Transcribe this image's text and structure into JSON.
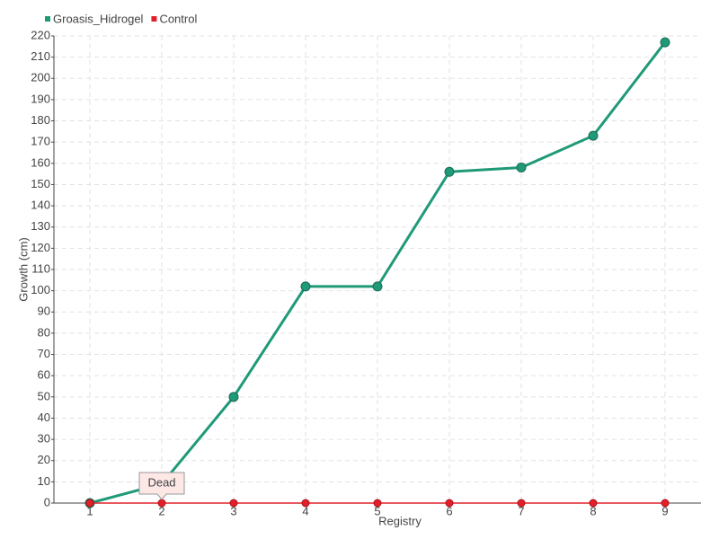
{
  "chart_data": {
    "type": "line",
    "categories": [
      "1",
      "2",
      "3",
      "4",
      "5",
      "6",
      "7",
      "8",
      "9"
    ],
    "series": [
      {
        "name": "Groasis_Hidrogel",
        "color": "#1f9a78",
        "values": [
          0,
          9,
          50,
          102,
          102,
          156,
          158,
          173,
          217
        ]
      },
      {
        "name": "Control",
        "color": "#e0202a",
        "values": [
          0,
          0,
          0,
          0,
          0,
          0,
          0,
          0,
          0
        ]
      }
    ],
    "ylim": [
      0,
      220
    ],
    "yticks": [
      0,
      10,
      20,
      30,
      40,
      50,
      60,
      70,
      80,
      90,
      100,
      110,
      120,
      130,
      140,
      150,
      160,
      170,
      180,
      190,
      200,
      210,
      220
    ],
    "xlabel": "Registry",
    "ylabel": "Growth (cm)",
    "annotation": "Dead",
    "grid": true,
    "legend": "top-left"
  }
}
